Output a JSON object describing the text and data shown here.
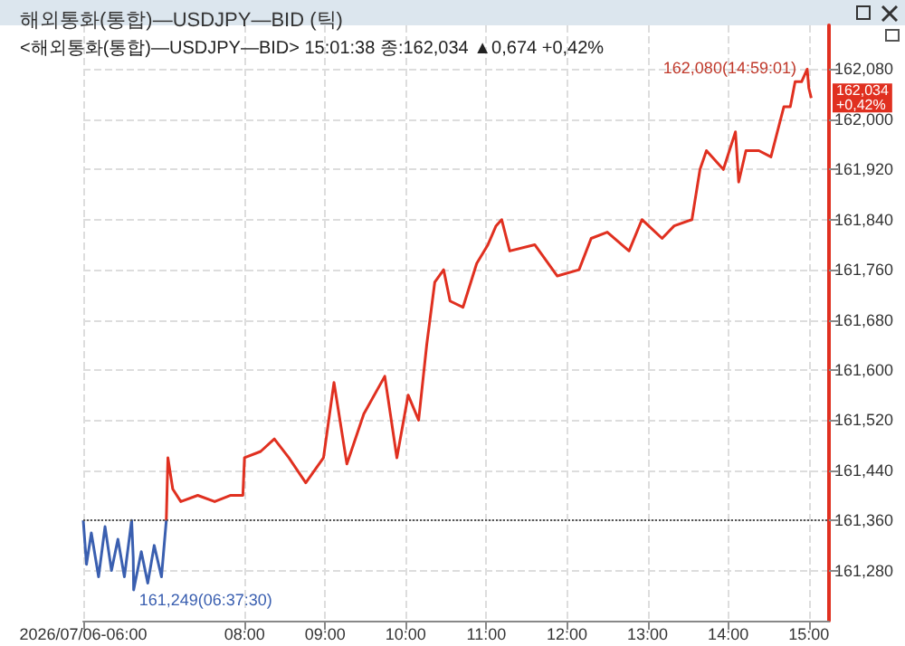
{
  "chart_data": {
    "type": "line",
    "title": "해외통화(통합)—USDJPY—BID (틱)",
    "subtitle": "<해외통화(통합)—USDJPY—BID> 15:01:38 종:162,034 ▲0,674 +0,42%",
    "xlim": [
      6,
      15.25
    ],
    "xticks": [
      {
        "value": 6,
        "label": "2026/07/06-06:00"
      },
      {
        "value": 8,
        "label": "08:00"
      },
      {
        "value": 9,
        "label": "09:00"
      },
      {
        "value": 10,
        "label": "10:00"
      },
      {
        "value": 11,
        "label": "11:00"
      },
      {
        "value": 12,
        "label": "12:00"
      },
      {
        "value": 13,
        "label": "13:00"
      },
      {
        "value": 14,
        "label": "14:00"
      },
      {
        "value": 15,
        "label": "15:00"
      }
    ],
    "ylim": [
      161200,
      162150
    ],
    "yticks": [
      {
        "value": 161280,
        "label": "161,280"
      },
      {
        "value": 161360,
        "label": "161,360"
      },
      {
        "value": 161440,
        "label": "161,440"
      },
      {
        "value": 161520,
        "label": "161,520"
      },
      {
        "value": 161600,
        "label": "161,600"
      },
      {
        "value": 161680,
        "label": "161,680"
      },
      {
        "value": 161760,
        "label": "161,760"
      },
      {
        "value": 161840,
        "label": "161,840"
      },
      {
        "value": 161920,
        "label": "161,920"
      },
      {
        "value": 162000,
        "label": "162,000"
      },
      {
        "value": 162080,
        "label": "162,080"
      }
    ],
    "grid": true,
    "marker": "none",
    "line_style": "solid",
    "series": [
      {
        "color": "#3a5fb0",
        "x": [
          6.0,
          6.04,
          6.1,
          6.19,
          6.27,
          6.35,
          6.43,
          6.51,
          6.6,
          6.62,
          6.625,
          6.72,
          6.8,
          6.88,
          6.97,
          7.01,
          7.03
        ],
        "values": [
          161360,
          161290,
          161340,
          161270,
          161350,
          161280,
          161330,
          161270,
          161360,
          161300,
          161249,
          161310,
          161260,
          161320,
          161270,
          161330,
          161360
        ]
      },
      {
        "color": "#e03020",
        "x": [
          7.03,
          7.05,
          7.11,
          7.21,
          7.42,
          7.63,
          7.83,
          7.98,
          8.0,
          8.2,
          8.37,
          8.55,
          8.76,
          8.98,
          9.11,
          9.27,
          9.48,
          9.74,
          9.89,
          10.03,
          10.16,
          10.26,
          10.36,
          10.47,
          10.55,
          10.71,
          10.88,
          11.02,
          11.12,
          11.19,
          11.29,
          11.6,
          11.88,
          12.15,
          12.3,
          12.5,
          12.77,
          12.93,
          13.18,
          13.33,
          13.55,
          13.65,
          13.73,
          13.94,
          14.09,
          14.13,
          14.22,
          14.38,
          14.53,
          14.61,
          14.69,
          14.77,
          14.83,
          14.91,
          14.98,
          15.0,
          15.03
        ],
        "values": [
          161360,
          161460,
          161410,
          161390,
          161400,
          161390,
          161400,
          161400,
          161460,
          161470,
          161490,
          161460,
          161420,
          161460,
          161580,
          161450,
          161530,
          161590,
          161460,
          161560,
          161520,
          161640,
          161740,
          161760,
          161710,
          161700,
          161770,
          161800,
          161830,
          161840,
          161790,
          161800,
          161750,
          161760,
          161810,
          161820,
          161790,
          161840,
          161810,
          161830,
          161840,
          161920,
          161950,
          161920,
          161980,
          161900,
          161950,
          161950,
          161940,
          161980,
          162020,
          162020,
          162060,
          162060,
          162080,
          162050,
          162034
        ]
      }
    ],
    "ref_lines": [
      {
        "axis": "y",
        "value": 161360,
        "color": "#555555",
        "line_style": "dotted"
      }
    ],
    "annotations": [
      {
        "text": "161,249(06:37:30)",
        "x": 6.625,
        "y": 161249
      },
      {
        "text": "162,080(14:59:01)",
        "x": 14.98,
        "y": 162080
      },
      {
        "text": "162,034\n+0,42%",
        "x": 15.03,
        "y": 162034
      }
    ]
  }
}
